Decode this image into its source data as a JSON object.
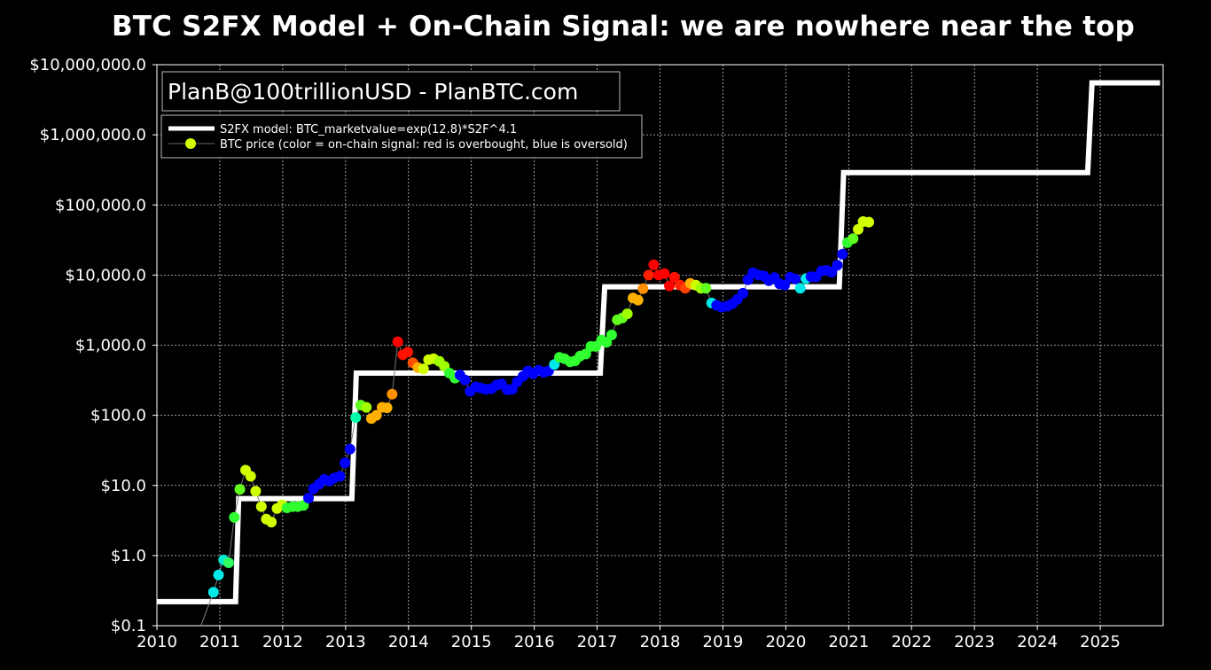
{
  "chart_data": {
    "type": "scatter",
    "title": "BTC S2FX Model + On-Chain Signal: we are nowhere near the top",
    "xlabel": "",
    "ylabel": "",
    "xlim": [
      2010,
      2026
    ],
    "ylim": [
      0.1,
      12000000
    ],
    "y_scale": "log",
    "grid": true,
    "legend_position": "upper-left",
    "credit": "PlanB@100trillionUSD  -  PlanBTC.com",
    "x_ticks": [
      2010,
      2011,
      2012,
      2013,
      2014,
      2015,
      2016,
      2017,
      2018,
      2019,
      2020,
      2021,
      2022,
      2023,
      2024,
      2025
    ],
    "x_tick_labels": [
      "2010",
      "2011",
      "2012",
      "2013",
      "2014",
      "2015",
      "2016",
      "2017",
      "2018",
      "2019",
      "2020",
      "2021",
      "2022",
      "2023",
      "2024",
      "2025"
    ],
    "y_ticks": [
      0.1,
      1,
      10,
      100,
      1000,
      10000,
      100000,
      1000000,
      10000000
    ],
    "y_tick_labels": [
      "$0.1",
      "$1.0",
      "$10.0",
      "$100.0",
      "$1,000.0",
      "$10,000.0",
      "$100,000.0",
      "$1,000,000.0",
      "$10,000,000.0"
    ],
    "series": [
      {
        "name": "S2FX model: BTC_marketvalue=exp(12.8)*S2F^4.1",
        "style": "step-line",
        "color": "#ffffff",
        "points": [
          [
            2010.0,
            0.22
          ],
          [
            2011.25,
            0.22
          ],
          [
            2011.3,
            6.5
          ],
          [
            2013.1,
            6.5
          ],
          [
            2013.17,
            400
          ],
          [
            2017.05,
            400
          ],
          [
            2017.12,
            6800
          ],
          [
            2020.85,
            6800
          ],
          [
            2020.92,
            290000
          ],
          [
            2024.8,
            290000
          ],
          [
            2024.87,
            5500000
          ],
          [
            2025.95,
            5500000
          ]
        ]
      },
      {
        "name": "BTC price (color = on-chain signal: red is overbought, blue is oversold)",
        "style": "scatter",
        "color_scale": "signal (blue = oversold, red = overbought)",
        "points": [
          {
            "x": 2010.9,
            "y": 0.3,
            "color": "#00e8e8"
          },
          {
            "x": 2010.98,
            "y": 0.53,
            "color": "#00e8e8"
          },
          {
            "x": 2011.06,
            "y": 0.87,
            "color": "#00e8d0"
          },
          {
            "x": 2011.14,
            "y": 0.79,
            "color": "#30ff60"
          },
          {
            "x": 2011.23,
            "y": 3.5,
            "color": "#30ff30"
          },
          {
            "x": 2011.32,
            "y": 8.8,
            "color": "#60ff20"
          },
          {
            "x": 2011.41,
            "y": 16.5,
            "color": "#d0ff00"
          },
          {
            "x": 2011.49,
            "y": 13.5,
            "color": "#d0ff00"
          },
          {
            "x": 2011.57,
            "y": 8.3,
            "color": "#d0ff00"
          },
          {
            "x": 2011.66,
            "y": 5.0,
            "color": "#d0ff00"
          },
          {
            "x": 2011.74,
            "y": 3.3,
            "color": "#d0ff00"
          },
          {
            "x": 2011.82,
            "y": 3.0,
            "color": "#d0ff00"
          },
          {
            "x": 2011.91,
            "y": 4.7,
            "color": "#d0ff00"
          },
          {
            "x": 2011.99,
            "y": 5.3,
            "color": "#d0ff00"
          },
          {
            "x": 2012.07,
            "y": 4.8,
            "color": "#30ff30"
          },
          {
            "x": 2012.16,
            "y": 5.0,
            "color": "#30ff30"
          },
          {
            "x": 2012.24,
            "y": 5.0,
            "color": "#30ff30"
          },
          {
            "x": 2012.33,
            "y": 5.2,
            "color": "#30ff30"
          },
          {
            "x": 2012.41,
            "y": 6.6,
            "color": "#0000ff"
          },
          {
            "x": 2012.49,
            "y": 9.0,
            "color": "#0000ff"
          },
          {
            "x": 2012.58,
            "y": 10.5,
            "color": "#0000ff"
          },
          {
            "x": 2012.66,
            "y": 12.2,
            "color": "#0000ff"
          },
          {
            "x": 2012.74,
            "y": 11.5,
            "color": "#0000ff"
          },
          {
            "x": 2012.82,
            "y": 12.8,
            "color": "#0000ff"
          },
          {
            "x": 2012.91,
            "y": 13.5,
            "color": "#0000ff"
          },
          {
            "x": 2012.99,
            "y": 21,
            "color": "#0000ff"
          },
          {
            "x": 2013.07,
            "y": 33,
            "color": "#0000ff"
          },
          {
            "x": 2013.16,
            "y": 93,
            "color": "#00ffaa"
          },
          {
            "x": 2013.24,
            "y": 140,
            "color": "#60ff20"
          },
          {
            "x": 2013.33,
            "y": 130,
            "color": "#a0ff00"
          },
          {
            "x": 2013.41,
            "y": 90,
            "color": "#ffb000"
          },
          {
            "x": 2013.49,
            "y": 100,
            "color": "#ffb000"
          },
          {
            "x": 2013.58,
            "y": 130,
            "color": "#ffb000"
          },
          {
            "x": 2013.66,
            "y": 128,
            "color": "#ffb000"
          },
          {
            "x": 2013.74,
            "y": 200,
            "color": "#ff9000"
          },
          {
            "x": 2013.83,
            "y": 1120,
            "color": "#ff0000"
          },
          {
            "x": 2013.91,
            "y": 730,
            "color": "#ff1000"
          },
          {
            "x": 2013.99,
            "y": 800,
            "color": "#ff1000"
          },
          {
            "x": 2014.07,
            "y": 560,
            "color": "#ff5000"
          },
          {
            "x": 2014.15,
            "y": 480,
            "color": "#ffb000"
          },
          {
            "x": 2014.24,
            "y": 460,
            "color": "#d0ff00"
          },
          {
            "x": 2014.32,
            "y": 620,
            "color": "#d0ff00"
          },
          {
            "x": 2014.4,
            "y": 640,
            "color": "#d0ff00"
          },
          {
            "x": 2014.49,
            "y": 590,
            "color": "#a0ff00"
          },
          {
            "x": 2014.57,
            "y": 500,
            "color": "#a0ff00"
          },
          {
            "x": 2014.65,
            "y": 400,
            "color": "#30ff30"
          },
          {
            "x": 2014.74,
            "y": 340,
            "color": "#30ff30"
          },
          {
            "x": 2014.82,
            "y": 375,
            "color": "#0000ff"
          },
          {
            "x": 2014.9,
            "y": 320,
            "color": "#0000ff"
          },
          {
            "x": 2014.98,
            "y": 220,
            "color": "#0000ff"
          },
          {
            "x": 2015.07,
            "y": 255,
            "color": "#0000ff"
          },
          {
            "x": 2015.15,
            "y": 245,
            "color": "#0000ff"
          },
          {
            "x": 2015.23,
            "y": 235,
            "color": "#0000ff"
          },
          {
            "x": 2015.32,
            "y": 240,
            "color": "#0000ff"
          },
          {
            "x": 2015.4,
            "y": 270,
            "color": "#0000ff"
          },
          {
            "x": 2015.48,
            "y": 280,
            "color": "#0000ff"
          },
          {
            "x": 2015.57,
            "y": 232,
            "color": "#0000ff"
          },
          {
            "x": 2015.65,
            "y": 235,
            "color": "#0000ff"
          },
          {
            "x": 2015.73,
            "y": 300,
            "color": "#0000ff"
          },
          {
            "x": 2015.82,
            "y": 360,
            "color": "#0000ff"
          },
          {
            "x": 2015.9,
            "y": 430,
            "color": "#0000ff"
          },
          {
            "x": 2015.98,
            "y": 390,
            "color": "#0000ff"
          },
          {
            "x": 2016.07,
            "y": 440,
            "color": "#0000ff"
          },
          {
            "x": 2016.15,
            "y": 410,
            "color": "#0000ff"
          },
          {
            "x": 2016.23,
            "y": 430,
            "color": "#0000ff"
          },
          {
            "x": 2016.32,
            "y": 530,
            "color": "#00e8e8"
          },
          {
            "x": 2016.4,
            "y": 670,
            "color": "#30ff30"
          },
          {
            "x": 2016.48,
            "y": 640,
            "color": "#30ff30"
          },
          {
            "x": 2016.57,
            "y": 580,
            "color": "#30ff30"
          },
          {
            "x": 2016.65,
            "y": 600,
            "color": "#30ff30"
          },
          {
            "x": 2016.73,
            "y": 700,
            "color": "#30ff30"
          },
          {
            "x": 2016.82,
            "y": 750,
            "color": "#30ff30"
          },
          {
            "x": 2016.9,
            "y": 960,
            "color": "#30ff30"
          },
          {
            "x": 2016.98,
            "y": 960,
            "color": "#30ff30"
          },
          {
            "x": 2017.07,
            "y": 1180,
            "color": "#30ff30"
          },
          {
            "x": 2017.15,
            "y": 1100,
            "color": "#30ff30"
          },
          {
            "x": 2017.23,
            "y": 1400,
            "color": "#30ff30"
          },
          {
            "x": 2017.32,
            "y": 2300,
            "color": "#60ff20"
          },
          {
            "x": 2017.4,
            "y": 2450,
            "color": "#60ff20"
          },
          {
            "x": 2017.48,
            "y": 2800,
            "color": "#a0ff00"
          },
          {
            "x": 2017.57,
            "y": 4700,
            "color": "#ffb000"
          },
          {
            "x": 2017.65,
            "y": 4400,
            "color": "#ffb000"
          },
          {
            "x": 2017.73,
            "y": 6400,
            "color": "#ff9000"
          },
          {
            "x": 2017.82,
            "y": 10000,
            "color": "#ff2000"
          },
          {
            "x": 2017.9,
            "y": 14000,
            "color": "#ff0000"
          },
          {
            "x": 2017.98,
            "y": 10000,
            "color": "#ff0000"
          },
          {
            "x": 2018.07,
            "y": 10500,
            "color": "#ff0000"
          },
          {
            "x": 2018.15,
            "y": 7000,
            "color": "#ff0000"
          },
          {
            "x": 2018.23,
            "y": 9300,
            "color": "#ff1000"
          },
          {
            "x": 2018.32,
            "y": 7200,
            "color": "#ff2000"
          },
          {
            "x": 2018.4,
            "y": 6500,
            "color": "#ff4000"
          },
          {
            "x": 2018.48,
            "y": 7600,
            "color": "#ffb000"
          },
          {
            "x": 2018.57,
            "y": 7200,
            "color": "#d0ff00"
          },
          {
            "x": 2018.65,
            "y": 6500,
            "color": "#a0ff00"
          },
          {
            "x": 2018.73,
            "y": 6500,
            "color": "#60ff20"
          },
          {
            "x": 2018.82,
            "y": 4000,
            "color": "#00e8e8"
          },
          {
            "x": 2018.9,
            "y": 3700,
            "color": "#0000ff"
          },
          {
            "x": 2018.98,
            "y": 3500,
            "color": "#0000ff"
          },
          {
            "x": 2019.07,
            "y": 3600,
            "color": "#0000ff"
          },
          {
            "x": 2019.15,
            "y": 3900,
            "color": "#0000ff"
          },
          {
            "x": 2019.23,
            "y": 4500,
            "color": "#0000ff"
          },
          {
            "x": 2019.32,
            "y": 5500,
            "color": "#0000ff"
          },
          {
            "x": 2019.4,
            "y": 8600,
            "color": "#0000ff"
          },
          {
            "x": 2019.48,
            "y": 10800,
            "color": "#0000ff"
          },
          {
            "x": 2019.57,
            "y": 10000,
            "color": "#0000ff"
          },
          {
            "x": 2019.65,
            "y": 9700,
            "color": "#0000ff"
          },
          {
            "x": 2019.73,
            "y": 8300,
            "color": "#0000ff"
          },
          {
            "x": 2019.82,
            "y": 9200,
            "color": "#0000ff"
          },
          {
            "x": 2019.9,
            "y": 7500,
            "color": "#0000ff"
          },
          {
            "x": 2019.98,
            "y": 7200,
            "color": "#0000ff"
          },
          {
            "x": 2020.07,
            "y": 9300,
            "color": "#0000ff"
          },
          {
            "x": 2020.15,
            "y": 8800,
            "color": "#0000ff"
          },
          {
            "x": 2020.23,
            "y": 6500,
            "color": "#00e8e8"
          },
          {
            "x": 2020.32,
            "y": 8900,
            "color": "#00e8e8"
          },
          {
            "x": 2020.4,
            "y": 9500,
            "color": "#0000ff"
          },
          {
            "x": 2020.48,
            "y": 9400,
            "color": "#0000ff"
          },
          {
            "x": 2020.57,
            "y": 11500,
            "color": "#0000ff"
          },
          {
            "x": 2020.65,
            "y": 11700,
            "color": "#0000ff"
          },
          {
            "x": 2020.73,
            "y": 11000,
            "color": "#0000ff"
          },
          {
            "x": 2020.82,
            "y": 13800,
            "color": "#0000ff"
          },
          {
            "x": 2020.9,
            "y": 19800,
            "color": "#0000ff"
          },
          {
            "x": 2020.98,
            "y": 29000,
            "color": "#30ff30"
          },
          {
            "x": 2021.07,
            "y": 33000,
            "color": "#60ff20"
          },
          {
            "x": 2021.15,
            "y": 45000,
            "color": "#d0ff00"
          },
          {
            "x": 2021.23,
            "y": 58000,
            "color": "#d0ff00"
          },
          {
            "x": 2021.32,
            "y": 57000,
            "color": "#d0ff00"
          }
        ]
      }
    ]
  }
}
